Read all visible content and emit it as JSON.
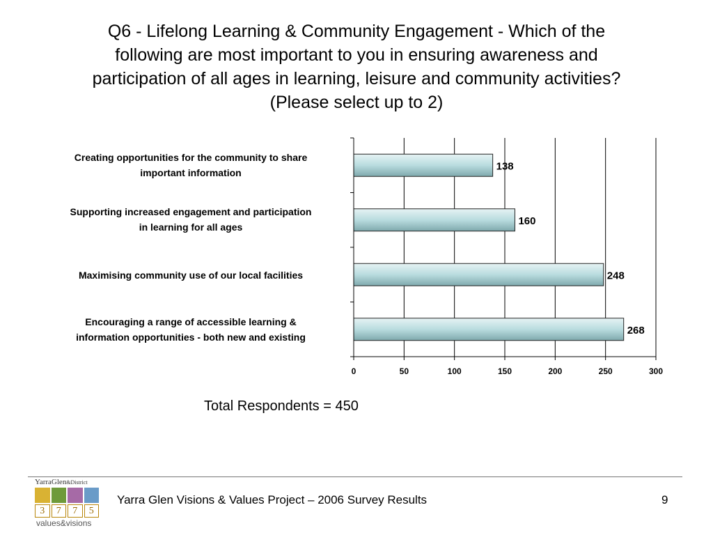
{
  "title_lines": [
    "Q6 - Lifelong Learning & Community Engagement - Which of the",
    "following are most important to you in ensuring awareness and",
    "participation of all ages in learning, leisure and community activities?",
    "(Please select up to 2)"
  ],
  "chart_data": {
    "type": "bar",
    "orientation": "horizontal",
    "categories": [
      [
        "Creating opportunities for the community to share",
        "important information"
      ],
      [
        "Supporting increased engagement and participation",
        "in learning for all ages"
      ],
      [
        "Maximising community use of our local facilities"
      ],
      [
        "Encouraging a range of accessible learning &",
        "information opportunities - both new and existing"
      ]
    ],
    "values": [
      138,
      160,
      248,
      268
    ],
    "xlim": [
      0,
      300
    ],
    "xticks": [
      0,
      50,
      100,
      150,
      200,
      250,
      300
    ],
    "grid": true,
    "data_labels": true,
    "bar_color": "#b9dcdf",
    "bar_border": "#222222"
  },
  "total_respondents": "Total Respondents = 450",
  "footer": {
    "text": "Yarra Glen Visions & Values Project – 2006 Survey Results",
    "page_number": "9"
  },
  "logo": {
    "brand": "YarraGlen",
    "brand_suffix": "&District",
    "digits": [
      "3",
      "7",
      "7",
      "5"
    ],
    "tagline": "values&visions"
  }
}
